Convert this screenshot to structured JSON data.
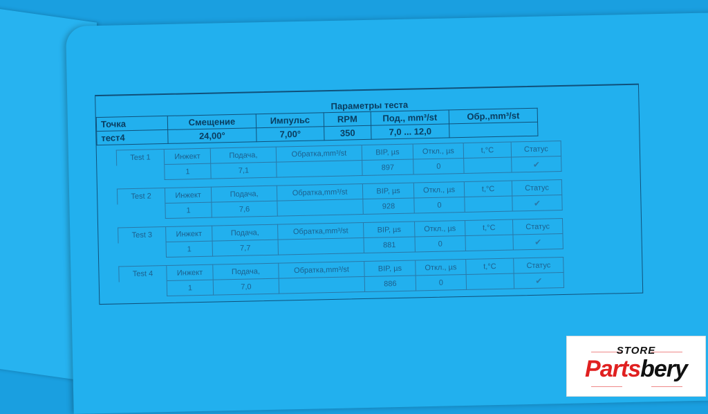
{
  "document": {
    "title": "Параметры теста",
    "header": {
      "columns": [
        "Точка",
        "Смещение",
        "Импульс",
        "RPM",
        "Под., mm³/st",
        "Обр.,mm³/st"
      ],
      "values": [
        "тест4",
        "24,00°",
        "7,00°",
        "350",
        "7,0 ... 12,0",
        ""
      ]
    },
    "test_columns": [
      "Инжект",
      "Подача,",
      "Обратка,mm³/st",
      "BIP, µs",
      "Откл., µs",
      "t,°C",
      "Статус"
    ],
    "tests": [
      {
        "label": "Test 1",
        "values": [
          "1",
          "7,1",
          "",
          "897",
          "0",
          "",
          ""
        ],
        "status": "check-icon"
      },
      {
        "label": "Test 2",
        "values": [
          "1",
          "7,6",
          "",
          "928",
          "0",
          "",
          ""
        ],
        "status": "check-icon"
      },
      {
        "label": "Test 3",
        "values": [
          "1",
          "7,7",
          "",
          "881",
          "0",
          "",
          ""
        ],
        "status": "check-icon"
      },
      {
        "label": "Test 4",
        "values": [
          "1",
          "7,0",
          "",
          "886",
          "0",
          "",
          ""
        ],
        "status": "check-icon"
      }
    ]
  },
  "watermark": {
    "store": "STORE",
    "brand_red": "Parts",
    "brand_black": "bery"
  },
  "colors": {
    "background": "#22b0ee",
    "text": "#0a3d60",
    "logo_red": "#e02020"
  }
}
